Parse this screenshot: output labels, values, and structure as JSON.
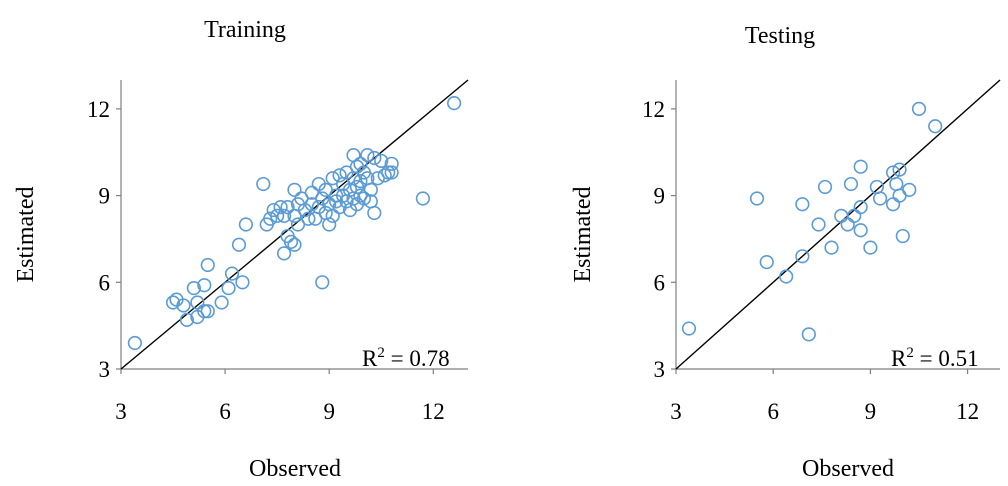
{
  "marker_color": "#5b9bd5",
  "chart_data": [
    {
      "type": "scatter",
      "title": "Training",
      "xlabel": "Observed",
      "ylabel": "Estimated",
      "xlim": [
        3,
        13
      ],
      "ylim": [
        3,
        13
      ],
      "xticks": [
        "3",
        "6",
        "9",
        "12"
      ],
      "yticks": [
        "3",
        "6",
        "9",
        "12"
      ],
      "annotation": {
        "prefix": "R",
        "sup": "2",
        "suffix": " = 0.78"
      },
      "reference_line": {
        "from": [
          3,
          3
        ],
        "to": [
          13,
          13
        ]
      },
      "points": [
        [
          3.4,
          3.9
        ],
        [
          4.5,
          5.3
        ],
        [
          4.6,
          5.4
        ],
        [
          4.8,
          5.2
        ],
        [
          4.9,
          4.7
        ],
        [
          5.1,
          5.8
        ],
        [
          5.2,
          5.3
        ],
        [
          5.2,
          4.8
        ],
        [
          5.4,
          5.9
        ],
        [
          5.4,
          5.0
        ],
        [
          5.5,
          6.6
        ],
        [
          5.5,
          5.0
        ],
        [
          5.9,
          5.3
        ],
        [
          6.1,
          5.8
        ],
        [
          6.2,
          6.3
        ],
        [
          6.4,
          7.3
        ],
        [
          6.5,
          6.0
        ],
        [
          6.6,
          8.0
        ],
        [
          7.1,
          9.4
        ],
        [
          7.2,
          8.0
        ],
        [
          7.3,
          8.2
        ],
        [
          7.4,
          8.5
        ],
        [
          7.5,
          8.3
        ],
        [
          7.6,
          8.6
        ],
        [
          7.7,
          8.3
        ],
        [
          7.7,
          7.0
        ],
        [
          7.8,
          7.6
        ],
        [
          7.8,
          8.6
        ],
        [
          7.9,
          7.4
        ],
        [
          8.0,
          8.3
        ],
        [
          8.0,
          7.3
        ],
        [
          8.0,
          9.2
        ],
        [
          8.1,
          8.0
        ],
        [
          8.1,
          8.7
        ],
        [
          8.2,
          8.9
        ],
        [
          8.3,
          8.5
        ],
        [
          8.4,
          8.2
        ],
        [
          8.5,
          8.7
        ],
        [
          8.5,
          9.1
        ],
        [
          8.6,
          8.2
        ],
        [
          8.7,
          9.4
        ],
        [
          8.7,
          8.6
        ],
        [
          8.8,
          8.9
        ],
        [
          8.8,
          6.0
        ],
        [
          8.9,
          8.4
        ],
        [
          8.9,
          9.2
        ],
        [
          9.0,
          8.0
        ],
        [
          9.0,
          8.7
        ],
        [
          9.1,
          9.6
        ],
        [
          9.1,
          8.3
        ],
        [
          9.2,
          9.0
        ],
        [
          9.2,
          8.8
        ],
        [
          9.3,
          9.7
        ],
        [
          9.3,
          8.6
        ],
        [
          9.4,
          9.4
        ],
        [
          9.4,
          9.0
        ],
        [
          9.5,
          9.8
        ],
        [
          9.5,
          8.8
        ],
        [
          9.6,
          9.2
        ],
        [
          9.6,
          8.5
        ],
        [
          9.7,
          10.4
        ],
        [
          9.7,
          9.6
        ],
        [
          9.7,
          8.9
        ],
        [
          9.8,
          10.0
        ],
        [
          9.8,
          9.3
        ],
        [
          9.8,
          8.7
        ],
        [
          9.9,
          10.1
        ],
        [
          9.9,
          9.5
        ],
        [
          9.9,
          9.0
        ],
        [
          10.0,
          9.8
        ],
        [
          10.0,
          8.9
        ],
        [
          10.1,
          10.4
        ],
        [
          10.1,
          9.6
        ],
        [
          10.2,
          9.2
        ],
        [
          10.2,
          8.8
        ],
        [
          10.3,
          10.3
        ],
        [
          10.3,
          8.4
        ],
        [
          10.4,
          9.6
        ],
        [
          10.5,
          10.2
        ],
        [
          10.6,
          9.7
        ],
        [
          10.7,
          9.8
        ],
        [
          10.8,
          10.1
        ],
        [
          10.8,
          9.8
        ],
        [
          11.7,
          8.9
        ],
        [
          12.6,
          12.2
        ]
      ]
    },
    {
      "type": "scatter",
      "title": "Testing",
      "xlabel": "Observed",
      "ylabel": "Estimated",
      "xlim": [
        3,
        13
      ],
      "ylim": [
        3,
        13
      ],
      "xticks": [
        "3",
        "6",
        "9",
        "12"
      ],
      "yticks": [
        "3",
        "6",
        "9",
        "12"
      ],
      "annotation": {
        "prefix": "R",
        "sup": "2",
        "suffix": " = 0.51"
      },
      "reference_line": {
        "from": [
          3,
          3
        ],
        "to": [
          13,
          13
        ]
      },
      "points": [
        [
          3.4,
          4.4
        ],
        [
          5.5,
          8.9
        ],
        [
          5.8,
          6.7
        ],
        [
          6.4,
          6.2
        ],
        [
          6.9,
          6.9
        ],
        [
          6.9,
          8.7
        ],
        [
          7.1,
          4.2
        ],
        [
          7.4,
          8.0
        ],
        [
          7.6,
          9.3
        ],
        [
          7.8,
          7.2
        ],
        [
          8.1,
          8.3
        ],
        [
          8.3,
          8.0
        ],
        [
          8.4,
          9.4
        ],
        [
          8.5,
          8.3
        ],
        [
          8.7,
          10.0
        ],
        [
          8.7,
          8.6
        ],
        [
          8.7,
          7.8
        ],
        [
          9.0,
          7.2
        ],
        [
          9.2,
          9.3
        ],
        [
          9.3,
          8.9
        ],
        [
          9.7,
          9.8
        ],
        [
          9.7,
          8.7
        ],
        [
          9.8,
          9.4
        ],
        [
          9.9,
          9.9
        ],
        [
          9.9,
          9.0
        ],
        [
          10.0,
          7.6
        ],
        [
          10.2,
          9.2
        ],
        [
          10.5,
          12.0
        ],
        [
          11.0,
          11.4
        ]
      ]
    }
  ]
}
